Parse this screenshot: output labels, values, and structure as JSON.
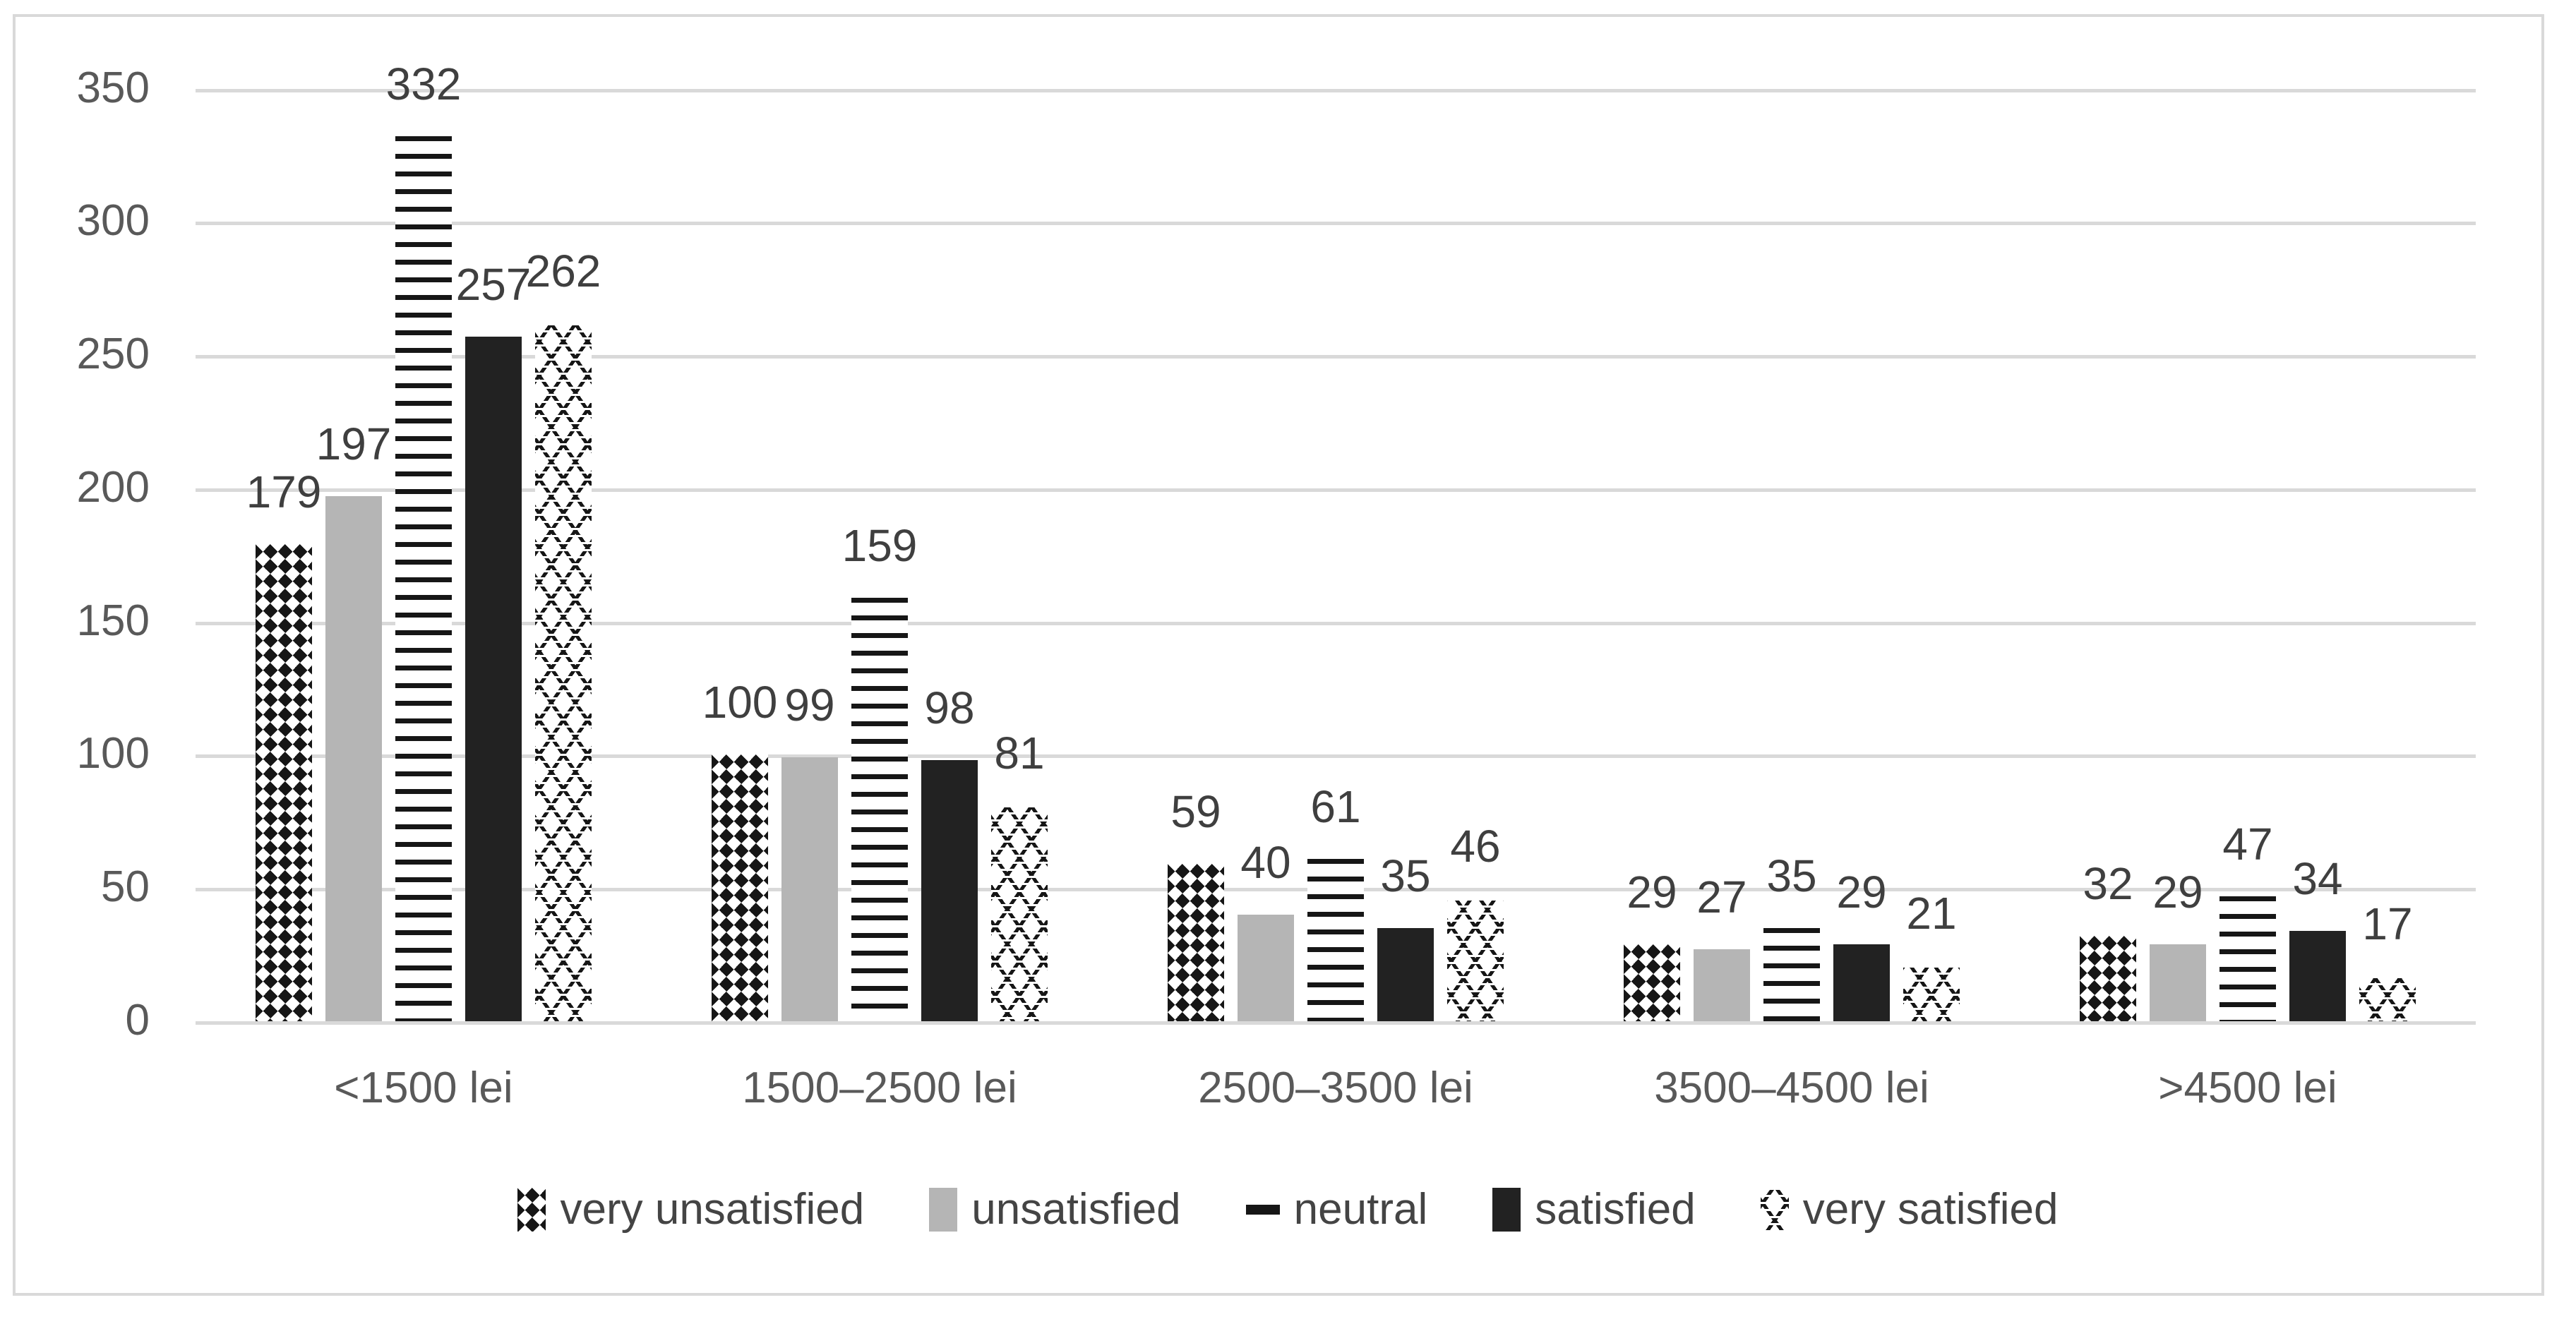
{
  "chart_data": {
    "type": "bar",
    "title": "",
    "xlabel": "",
    "ylabel": "",
    "categories": [
      "<1500 lei",
      "1500–2500 lei",
      "2500–3500 lei",
      "3500–4500 lei",
      ">4500 lei"
    ],
    "series": [
      {
        "name": "very unsatisfied",
        "pattern": "checker",
        "values": [
          179,
          100,
          59,
          29,
          32
        ]
      },
      {
        "name": "unsatisfied",
        "pattern": "gray",
        "values": [
          197,
          99,
          40,
          27,
          29
        ]
      },
      {
        "name": "neutral",
        "pattern": "hstripes",
        "values": [
          332,
          159,
          61,
          35,
          47
        ]
      },
      {
        "name": "satisfied",
        "pattern": "black",
        "values": [
          257,
          98,
          35,
          29,
          34
        ]
      },
      {
        "name": "very satisfied",
        "pattern": "zigzag",
        "values": [
          262,
          81,
          46,
          21,
          17
        ]
      }
    ],
    "y_axis": {
      "min": 0,
      "max": 350,
      "step": 50,
      "ticks": [
        0,
        50,
        100,
        150,
        200,
        250,
        300,
        350
      ]
    },
    "grid": true,
    "data_labels": true,
    "legend_position": "bottom",
    "style": {
      "gridline_color": "#d9d9d9",
      "frame_border_color": "#d9d9d9",
      "axis_text_color": "#595959",
      "data_label_color": "#3f3f3f",
      "legend_text_color": "#444444",
      "gray_fill": "#b5b5b5",
      "black_fill": "#222222",
      "pattern_ink": "#161616",
      "background": "#ffffff"
    }
  }
}
